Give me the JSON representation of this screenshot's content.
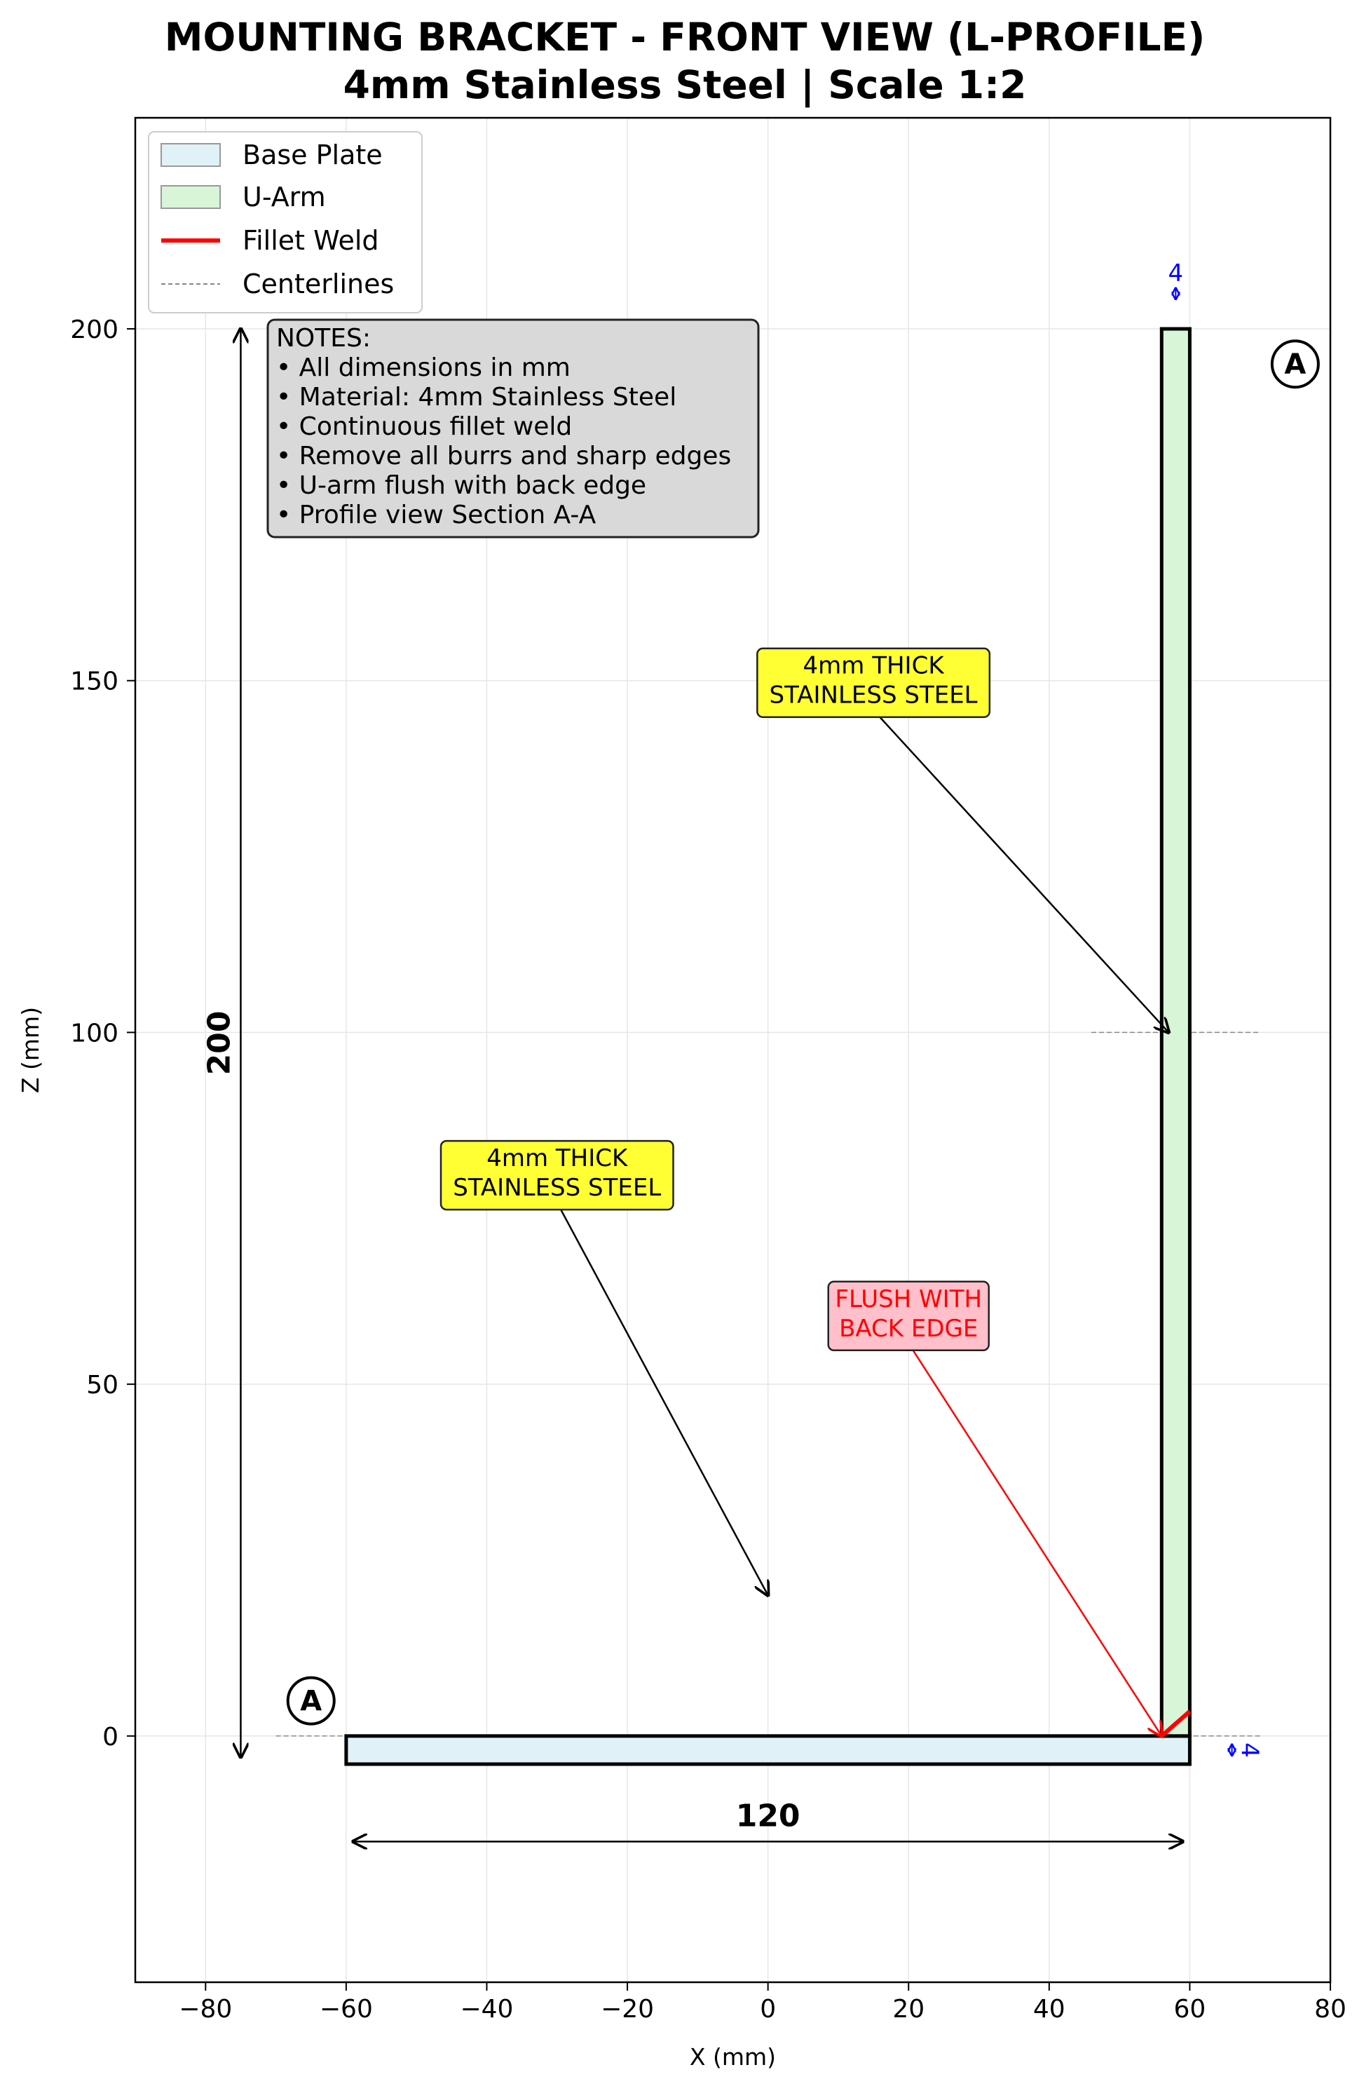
{
  "title": {
    "line1": "MOUNTING BRACKET - FRONT VIEW (L-PROFILE)",
    "line2": "4mm Stainless Steel | Scale 1:2"
  },
  "axes": {
    "xlabel": "X (mm)",
    "ylabel": "Z (mm)",
    "xlim": [
      -90,
      80
    ],
    "ylim": [
      -35,
      230
    ],
    "xticks": [
      -80,
      -60,
      -40,
      -20,
      0,
      20,
      40,
      60,
      80
    ],
    "xtick_labels": [
      "−80",
      "−60",
      "−40",
      "−20",
      "0",
      "20",
      "40",
      "60",
      "80"
    ],
    "yticks": [
      0,
      50,
      100,
      150,
      200
    ],
    "ytick_labels": [
      "0",
      "50",
      "100",
      "150",
      "200"
    ],
    "grid": true
  },
  "legend": {
    "placement": "top-left",
    "items": [
      {
        "label": "Base Plate",
        "kind": "patch",
        "color": "#e0f2f7"
      },
      {
        "label": "U-Arm",
        "kind": "patch",
        "color": "#d8f5d8"
      },
      {
        "label": "Fillet Weld",
        "kind": "line",
        "color": "#ff0000"
      },
      {
        "label": "Centerlines",
        "kind": "dash",
        "color": "#888888"
      }
    ]
  },
  "notes": {
    "lines": [
      "NOTES:",
      "• All dimensions in mm",
      "• Material: 4mm Stainless Steel",
      "• Continuous fillet weld",
      "• Remove all burrs and sharp edges",
      "• U-arm flush with back edge",
      "• Profile view Section A-A"
    ]
  },
  "parts": {
    "base_plate": {
      "x": [
        -60,
        60
      ],
      "z": [
        -4,
        0
      ],
      "fill": "#e0f2f7"
    },
    "u_arm": {
      "x": [
        56,
        60
      ],
      "z": [
        0,
        200
      ],
      "fill": "#d8f5d8"
    },
    "weld": {
      "from": [
        56,
        0
      ],
      "to": [
        60,
        3.5
      ],
      "color": "#ff0000"
    }
  },
  "centerlines": [
    {
      "from": [
        -70,
        0
      ],
      "to": [
        70,
        0
      ]
    },
    {
      "from": [
        46,
        100
      ],
      "to": [
        70,
        100
      ]
    }
  ],
  "dimensions": {
    "height": {
      "value": "200",
      "x": -75,
      "from": -3,
      "to": 200
    },
    "width": {
      "value": "120",
      "z": -15,
      "from": -59,
      "to": 59
    },
    "arm_thickness": {
      "value": "4",
      "x": 58,
      "z": 205
    },
    "plate_thickness": {
      "value": "4",
      "x": 66,
      "z": -2
    }
  },
  "callouts": [
    {
      "lines": [
        "4mm THICK",
        "STAINLESS STEEL"
      ],
      "text_at": [
        15,
        150
      ],
      "point_to": [
        57,
        100
      ],
      "box": "#ffff33",
      "text_color": "#000000",
      "arrow_color": "#000000"
    },
    {
      "lines": [
        "4mm THICK",
        "STAINLESS STEEL"
      ],
      "text_at": [
        -30,
        80
      ],
      "point_to": [
        0,
        20
      ],
      "box": "#ffff33",
      "text_color": "#000000",
      "arrow_color": "#000000"
    },
    {
      "lines": [
        "FLUSH WITH",
        "BACK EDGE"
      ],
      "text_at": [
        20,
        60
      ],
      "point_to": [
        56,
        0
      ],
      "box": "#ffc0cb",
      "text_color": "#ff0000",
      "arrow_color": "#ff0000"
    }
  ],
  "section_labels": [
    {
      "text": "A",
      "at": [
        75,
        195
      ]
    },
    {
      "text": "A",
      "at": [
        -65,
        5
      ]
    }
  ]
}
